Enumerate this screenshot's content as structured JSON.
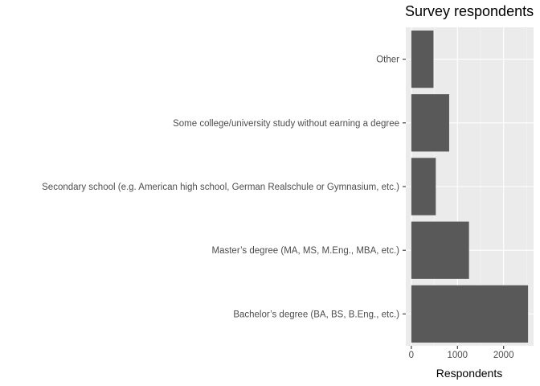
{
  "chart_data": {
    "type": "bar",
    "orientation": "horizontal",
    "title": "Survey respondents",
    "xlabel": "Respondents",
    "ylabel": "",
    "categories": [
      "Bachelor’s degree (BA, BS, B.Eng., etc.)",
      "Master’s degree (MA, MS, M.Eng., MBA, etc.)",
      "Secondary school (e.g. American high school, German Realschule or Gymnasium, etc.)",
      "Some college/university study without earning a degree",
      "Other"
    ],
    "values": [
      2530,
      1250,
      530,
      820,
      480
    ],
    "xlim": [
      -120,
      2650
    ],
    "x_ticks": [
      0,
      1000,
      2000
    ],
    "grid": true,
    "colors": {
      "bar": "#595959",
      "panel": "#ebebeb",
      "grid_major": "#ffffff",
      "grid_minor": "#f5f5f5"
    }
  }
}
